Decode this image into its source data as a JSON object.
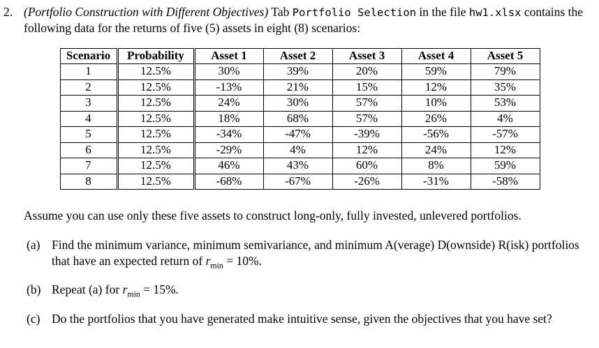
{
  "page": {
    "background_color": "#ffffff",
    "text_color": "#000000",
    "table_border_color": "#000000"
  },
  "problem": {
    "number": "2.",
    "title": "(Portfolio Construction with Different Objectives)",
    "after_title": "Tab",
    "tab_name": "Portfolio Selection",
    "between_text": "in the file",
    "file_name": "hw1.xlsx",
    "intro_rest": "contains the following data for the returns of five (5) assets in eight (8) scenarios:"
  },
  "table": {
    "headers": [
      "Scenario",
      "Probability",
      "Asset 1",
      "Asset 2",
      "Asset 3",
      "Asset 4",
      "Asset 5"
    ],
    "rows": [
      [
        "1",
        "12.5%",
        "30%",
        "39%",
        "20%",
        "59%",
        "79%"
      ],
      [
        "2",
        "12.5%",
        "-13%",
        "21%",
        "15%",
        "12%",
        "35%"
      ],
      [
        "3",
        "12.5%",
        "24%",
        "30%",
        "57%",
        "10%",
        "53%"
      ],
      [
        "4",
        "12.5%",
        "18%",
        "68%",
        "57%",
        "26%",
        "4%"
      ],
      [
        "5",
        "12.5%",
        "-34%",
        "-47%",
        "-39%",
        "-56%",
        "-57%"
      ],
      [
        "6",
        "12.5%",
        "-29%",
        "4%",
        "12%",
        "24%",
        "12%"
      ],
      [
        "7",
        "12.5%",
        "46%",
        "43%",
        "60%",
        "8%",
        "59%"
      ],
      [
        "8",
        "12.5%",
        "-68%",
        "-67%",
        "-26%",
        "-31%",
        "-58%"
      ]
    ]
  },
  "assumption": "Assume you can use only these five assets to construct long-only, fully invested, unlevered portfolios.",
  "parts": {
    "a": {
      "label": "(a)",
      "text": "Find the minimum variance, minimum semivariance, and minimum A(verage) D(ownside) R(isk) portfolios that have an expected return of",
      "r_symbol": "r",
      "r_subscript": "min",
      "value": "= 10%."
    },
    "b": {
      "label": "(b)",
      "text": "Repeat (a) for",
      "r_symbol": "r",
      "r_subscript": "min",
      "value": "= 15%."
    },
    "c": {
      "label": "(c)",
      "text": "Do the portfolios that you have generated make intuitive sense, given the objectives that you have set?"
    }
  }
}
